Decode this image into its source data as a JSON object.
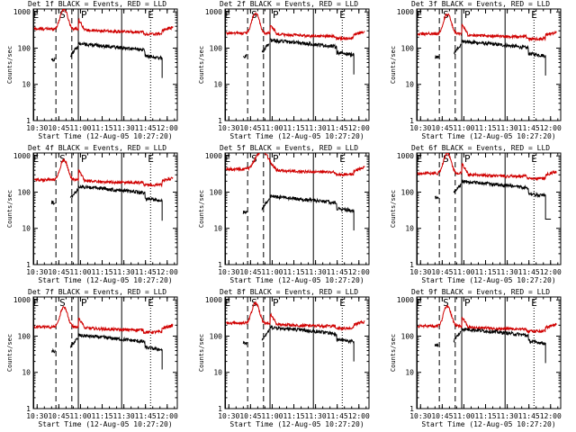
{
  "colors": {
    "events": "#000000",
    "lld": "#d00000",
    "background": "#ffffff"
  },
  "shared": {
    "xlabel": "Start Time (12-Aug-05 10:27:20)",
    "ylabel": "Counts/sec",
    "x_tick_labels": [
      "10:30",
      "10:45",
      "11:00",
      "11:15",
      "11:30",
      "11:45",
      "12:00"
    ],
    "y_tick_labels": [
      "1",
      "10",
      "100",
      "1000"
    ],
    "marker_letters": {
      "start": "E",
      "saa": "S",
      "peak": "P",
      "end": "E"
    }
  },
  "chart_data": [
    {
      "type": "line",
      "title": "Det 1f BLACK = Events, RED = LLD",
      "xlim": [
        "10:27:20",
        "12:07:00"
      ],
      "ylim": [
        1,
        1200
      ],
      "yscale": "log",
      "events_level": 60,
      "lld_level": 340,
      "flare": false,
      "low_events_tail": false
    },
    {
      "type": "line",
      "title": "Det 2f BLACK = Events, RED = LLD",
      "xlim": [
        "10:27:20",
        "12:07:00"
      ],
      "ylim": [
        1,
        1200
      ],
      "yscale": "log",
      "events_level": 75,
      "lld_level": 260,
      "flare": false,
      "low_events_tail": false
    },
    {
      "type": "line",
      "title": "Det 3f BLACK = Events, RED = LLD",
      "xlim": [
        "10:27:20",
        "12:07:00"
      ],
      "ylim": [
        1,
        1200
      ],
      "yscale": "log",
      "events_level": 70,
      "lld_level": 250,
      "flare": false,
      "low_events_tail": false
    },
    {
      "type": "line",
      "title": "Det 4f BLACK = Events, RED = LLD",
      "xlim": [
        "10:27:20",
        "12:07:00"
      ],
      "ylim": [
        1,
        1200
      ],
      "yscale": "log",
      "events_level": 65,
      "lld_level": 220,
      "flare": false,
      "low_events_tail": false
    },
    {
      "type": "line",
      "title": "Det 5f BLACK = Events, RED = LLD",
      "xlim": [
        "10:27:20",
        "12:07:00"
      ],
      "ylim": [
        1,
        1200
      ],
      "yscale": "log",
      "events_level": 35,
      "lld_level": 430,
      "flare": true,
      "low_events_tail": false
    },
    {
      "type": "line",
      "title": "Det 6f BLACK = Events, RED = LLD",
      "xlim": [
        "10:27:20",
        "12:07:00"
      ],
      "ylim": [
        1,
        1200
      ],
      "yscale": "log",
      "events_level": 90,
      "lld_level": 330,
      "flare": false,
      "low_events_tail": true
    },
    {
      "type": "line",
      "title": "Det 7f BLACK = Events, RED = LLD",
      "xlim": [
        "10:27:20",
        "12:07:00"
      ],
      "ylim": [
        1,
        1200
      ],
      "yscale": "log",
      "events_level": 48,
      "lld_level": 180,
      "flare": false,
      "low_events_tail": false
    },
    {
      "type": "line",
      "title": "Det 8f BLACK = Events, RED = LLD",
      "xlim": [
        "10:27:20",
        "12:07:00"
      ],
      "ylim": [
        1,
        1200
      ],
      "yscale": "log",
      "events_level": 80,
      "lld_level": 230,
      "flare": false,
      "low_events_tail": false
    },
    {
      "type": "line",
      "title": "Det 9f BLACK = Events, RED = LLD",
      "xlim": [
        "10:27:20",
        "12:07:00"
      ],
      "ylim": [
        1,
        1200
      ],
      "yscale": "log",
      "events_level": 72,
      "lld_level": 190,
      "flare": false,
      "low_events_tail": false
    }
  ]
}
